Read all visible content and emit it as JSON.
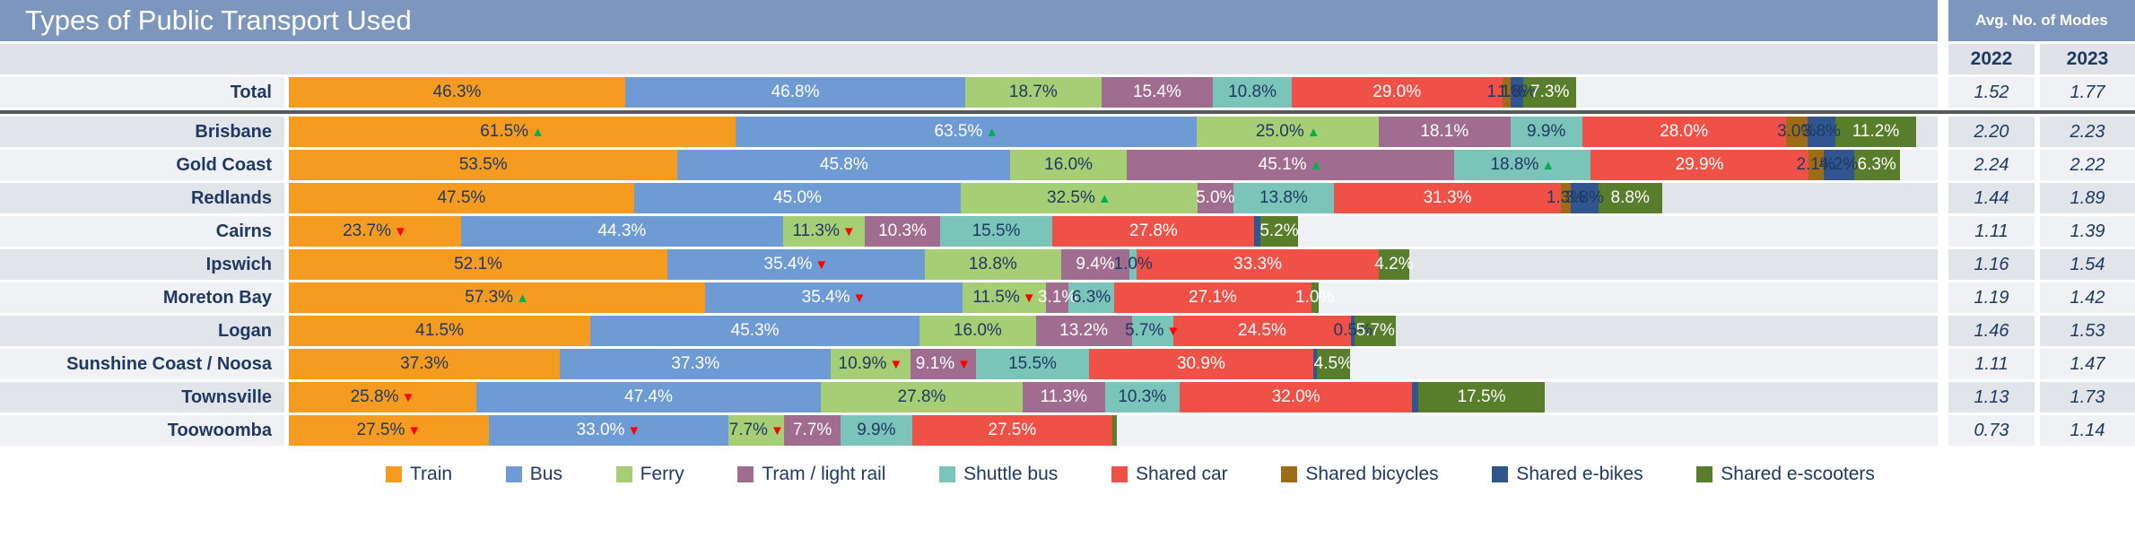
{
  "title": "Types of Public Transport Used",
  "avg_header": "Avg. No. of Modes",
  "years": [
    "2022",
    "2023"
  ],
  "colors": {
    "header_bg": "#7C96BD",
    "stripe_light": "#EFF1F4",
    "stripe_gray": "#E1E4E8",
    "years_bg": "#DFE2E6",
    "text_navy": "#1F3864",
    "title_text": "#FFFFFF",
    "arrow_up": "#00B050",
    "arrow_down": "#FF0000",
    "separator": "#58595B"
  },
  "chart_data": {
    "type": "bar",
    "orientation": "horizontal",
    "stacked": true,
    "unit": "percent",
    "title": "Types of Public Transport Used",
    "legend_position": "bottom",
    "series": [
      {
        "name": "Train",
        "color": "#F59B20",
        "label_color": "#1F3864"
      },
      {
        "name": "Bus",
        "color": "#6F9BD4",
        "label_color": "#FFFFFF"
      },
      {
        "name": "Ferry",
        "color": "#A6CE74",
        "label_color": "#1F3864"
      },
      {
        "name": "Tram / light rail",
        "color": "#A06C90",
        "label_color": "#FFFFFF"
      },
      {
        "name": "Shuttle bus",
        "color": "#7BC4B9",
        "label_color": "#1F3864"
      },
      {
        "name": "Shared car",
        "color": "#EF5147",
        "label_color": "#FFFFFF"
      },
      {
        "name": "Shared bicycles",
        "color": "#9E6C16",
        "label_color": "#1F3864"
      },
      {
        "name": "Shared e-bikes",
        "color": "#31568F",
        "label_color": "#1F3864"
      },
      {
        "name": "Shared e-scooters",
        "color": "#587E2C",
        "label_color": "#FFFFFF"
      }
    ],
    "categories": [
      "Total",
      "Brisbane",
      "Gold Coast",
      "Redlands",
      "Cairns",
      "Ipswich",
      "Moreton Bay",
      "Logan",
      "Sunshine Coast / Noosa",
      "Townsville",
      "Toowoomba"
    ],
    "rows": [
      {
        "label": "Total",
        "stripe": "light",
        "avg_2022": "1.52",
        "avg_2023": "1.77",
        "segments": [
          {
            "name": "Train",
            "value": 46.3,
            "text": "46.3%",
            "arrow": null
          },
          {
            "name": "Bus",
            "value": 46.8,
            "text": "46.8%",
            "arrow": null
          },
          {
            "name": "Ferry",
            "value": 18.7,
            "text": "18.7%",
            "arrow": null
          },
          {
            "name": "Tram / light rail",
            "value": 15.4,
            "text": "15.4%",
            "arrow": null
          },
          {
            "name": "Shuttle bus",
            "value": 10.8,
            "text": "10.8%",
            "arrow": null
          },
          {
            "name": "Shared car",
            "value": 29.0,
            "text": "29.0%",
            "arrow": null
          },
          {
            "name": "Shared bicycles",
            "value": 1.1,
            "text": "1.1%",
            "arrow": null
          },
          {
            "name": "Shared e-bikes",
            "value": 1.8,
            "text": "1.8%",
            "arrow": null
          },
          {
            "name": "Shared e-scooters",
            "value": 7.3,
            "text": "7.3%",
            "arrow": null
          }
        ]
      },
      {
        "label": "Brisbane",
        "stripe": "gray",
        "avg_2022": "2.20",
        "avg_2023": "2.23",
        "segments": [
          {
            "name": "Train",
            "value": 61.5,
            "text": "61.5%",
            "arrow": "up"
          },
          {
            "name": "Bus",
            "value": 63.5,
            "text": "63.5%",
            "arrow": "up"
          },
          {
            "name": "Ferry",
            "value": 25.0,
            "text": "25.0%",
            "arrow": "up"
          },
          {
            "name": "Tram / light rail",
            "value": 18.1,
            "text": "18.1%",
            "arrow": null
          },
          {
            "name": "Shuttle bus",
            "value": 9.9,
            "text": "9.9%",
            "arrow": null
          },
          {
            "name": "Shared car",
            "value": 28.0,
            "text": "28.0%",
            "arrow": null
          },
          {
            "name": "Shared bicycles",
            "value": 3.0,
            "text": "3.0%",
            "arrow": null
          },
          {
            "name": "Shared e-bikes",
            "value": 3.8,
            "text": "3.8%",
            "arrow": null
          },
          {
            "name": "Shared e-scooters",
            "value": 11.2,
            "text": "11.2%",
            "arrow": null
          }
        ]
      },
      {
        "label": "Gold Coast",
        "stripe": "light",
        "avg_2022": "2.24",
        "avg_2023": "2.22",
        "segments": [
          {
            "name": "Train",
            "value": 53.5,
            "text": "53.5%",
            "arrow": null
          },
          {
            "name": "Bus",
            "value": 45.8,
            "text": "45.8%",
            "arrow": null
          },
          {
            "name": "Ferry",
            "value": 16.0,
            "text": "16.0%",
            "arrow": null
          },
          {
            "name": "Tram / light rail",
            "value": 45.1,
            "text": "45.1%",
            "arrow": "up"
          },
          {
            "name": "Shuttle bus",
            "value": 18.8,
            "text": "18.8%",
            "arrow": "up"
          },
          {
            "name": "Shared car",
            "value": 29.9,
            "text": "29.9%",
            "arrow": null
          },
          {
            "name": "Shared bicycles",
            "value": 2.1,
            "text": "2.1%",
            "arrow": null
          },
          {
            "name": "Shared e-bikes",
            "value": 4.2,
            "text": "4.2%",
            "arrow": null
          },
          {
            "name": "Shared e-scooters",
            "value": 6.3,
            "text": "6.3%",
            "arrow": null
          }
        ]
      },
      {
        "label": "Redlands",
        "stripe": "gray",
        "avg_2022": "1.44",
        "avg_2023": "1.89",
        "segments": [
          {
            "name": "Train",
            "value": 47.5,
            "text": "47.5%",
            "arrow": null
          },
          {
            "name": "Bus",
            "value": 45.0,
            "text": "45.0%",
            "arrow": null
          },
          {
            "name": "Ferry",
            "value": 32.5,
            "text": "32.5%",
            "arrow": "up"
          },
          {
            "name": "Tram / light rail",
            "value": 5.0,
            "text": "5.0%",
            "arrow": null
          },
          {
            "name": "Shuttle bus",
            "value": 13.8,
            "text": "13.8%",
            "arrow": null
          },
          {
            "name": "Shared car",
            "value": 31.3,
            "text": "31.3%",
            "arrow": null
          },
          {
            "name": "Shared bicycles",
            "value": 1.3,
            "text": "1.3%",
            "arrow": null
          },
          {
            "name": "Shared e-bikes",
            "value": 3.8,
            "text": "3.8%",
            "arrow": null
          },
          {
            "name": "Shared e-scooters",
            "value": 8.8,
            "text": "8.8%",
            "arrow": null
          }
        ]
      },
      {
        "label": "Cairns",
        "stripe": "light",
        "avg_2022": "1.11",
        "avg_2023": "1.39",
        "segments": [
          {
            "name": "Train",
            "value": 23.7,
            "text": "23.7%",
            "arrow": "down"
          },
          {
            "name": "Bus",
            "value": 44.3,
            "text": "44.3%",
            "arrow": null
          },
          {
            "name": "Ferry",
            "value": 11.3,
            "text": "11.3%",
            "arrow": "down"
          },
          {
            "name": "Tram / light rail",
            "value": 10.3,
            "text": "10.3%",
            "arrow": null
          },
          {
            "name": "Shuttle bus",
            "value": 15.5,
            "text": "15.5%",
            "arrow": null
          },
          {
            "name": "Shared car",
            "value": 27.8,
            "text": "27.8%",
            "arrow": null
          },
          {
            "name": "Shared e-bikes",
            "value": 0.8,
            "text": "",
            "arrow": null
          },
          {
            "name": "Shared e-scooters",
            "value": 5.2,
            "text": "5.2%",
            "arrow": null
          }
        ]
      },
      {
        "label": "Ipswich",
        "stripe": "gray",
        "avg_2022": "1.16",
        "avg_2023": "1.54",
        "segments": [
          {
            "name": "Train",
            "value": 52.1,
            "text": "52.1%",
            "arrow": null
          },
          {
            "name": "Bus",
            "value": 35.4,
            "text": "35.4%",
            "arrow": "down"
          },
          {
            "name": "Ferry",
            "value": 18.8,
            "text": "18.8%",
            "arrow": null
          },
          {
            "name": "Tram / light rail",
            "value": 9.4,
            "text": "9.4%",
            "arrow": null
          },
          {
            "name": "Shuttle bus",
            "value": 1.0,
            "text": "1.0%",
            "arrow": null
          },
          {
            "name": "Shared car",
            "value": 33.3,
            "text": "33.3%",
            "arrow": null
          },
          {
            "name": "Shared e-scooters",
            "value": 4.2,
            "text": "4.2%",
            "arrow": null
          }
        ]
      },
      {
        "label": "Moreton Bay",
        "stripe": "light",
        "avg_2022": "1.19",
        "avg_2023": "1.42",
        "segments": [
          {
            "name": "Train",
            "value": 57.3,
            "text": "57.3%",
            "arrow": "up"
          },
          {
            "name": "Bus",
            "value": 35.4,
            "text": "35.4%",
            "arrow": "down"
          },
          {
            "name": "Ferry",
            "value": 11.5,
            "text": "11.5%",
            "arrow": "down"
          },
          {
            "name": "Tram / light rail",
            "value": 3.1,
            "text": "3.1%",
            "arrow": null
          },
          {
            "name": "Shuttle bus",
            "value": 6.3,
            "text": "6.3%",
            "arrow": null
          },
          {
            "name": "Shared car",
            "value": 27.1,
            "text": "27.1%",
            "arrow": null
          },
          {
            "name": "Shared e-scooters",
            "value": 1.0,
            "text": "1.0%",
            "arrow": null
          }
        ]
      },
      {
        "label": "Logan",
        "stripe": "gray",
        "avg_2022": "1.46",
        "avg_2023": "1.53",
        "segments": [
          {
            "name": "Train",
            "value": 41.5,
            "text": "41.5%",
            "arrow": null
          },
          {
            "name": "Bus",
            "value": 45.3,
            "text": "45.3%",
            "arrow": null
          },
          {
            "name": "Ferry",
            "value": 16.0,
            "text": "16.0%",
            "arrow": null
          },
          {
            "name": "Tram / light rail",
            "value": 13.2,
            "text": "13.2%",
            "arrow": null
          },
          {
            "name": "Shuttle bus",
            "value": 5.7,
            "text": "5.7%",
            "arrow": "down"
          },
          {
            "name": "Shared car",
            "value": 24.5,
            "text": "24.5%",
            "arrow": null
          },
          {
            "name": "Shared e-bikes",
            "value": 0.5,
            "text": "0.5%",
            "arrow": null
          },
          {
            "name": "Shared e-scooters",
            "value": 5.7,
            "text": "5.7%",
            "arrow": null
          }
        ]
      },
      {
        "label": "Sunshine Coast / Noosa",
        "stripe": "light",
        "avg_2022": "1.11",
        "avg_2023": "1.47",
        "segments": [
          {
            "name": "Train",
            "value": 37.3,
            "text": "37.3%",
            "arrow": null
          },
          {
            "name": "Bus",
            "value": 37.3,
            "text": "37.3%",
            "arrow": null
          },
          {
            "name": "Ferry",
            "value": 10.9,
            "text": "10.9%",
            "arrow": "down"
          },
          {
            "name": "Tram / light rail",
            "value": 9.1,
            "text": "9.1%",
            "arrow": "down"
          },
          {
            "name": "Shuttle bus",
            "value": 15.5,
            "text": "15.5%",
            "arrow": null
          },
          {
            "name": "Shared car",
            "value": 30.9,
            "text": "30.9%",
            "arrow": null
          },
          {
            "name": "Shared e-bikes",
            "value": 0.5,
            "text": "",
            "arrow": null
          },
          {
            "name": "Shared e-scooters",
            "value": 4.5,
            "text": "4.5%",
            "arrow": null
          }
        ]
      },
      {
        "label": "Townsville",
        "stripe": "gray",
        "avg_2022": "1.13",
        "avg_2023": "1.73",
        "segments": [
          {
            "name": "Train",
            "value": 25.8,
            "text": "25.8%",
            "arrow": "down"
          },
          {
            "name": "Bus",
            "value": 47.4,
            "text": "47.4%",
            "arrow": null
          },
          {
            "name": "Ferry",
            "value": 27.8,
            "text": "27.8%",
            "arrow": null
          },
          {
            "name": "Tram / light rail",
            "value": 11.3,
            "text": "11.3%",
            "arrow": null
          },
          {
            "name": "Shuttle bus",
            "value": 10.3,
            "text": "10.3%",
            "arrow": null
          },
          {
            "name": "Shared car",
            "value": 32.0,
            "text": "32.0%",
            "arrow": null
          },
          {
            "name": "Shared e-bikes",
            "value": 0.8,
            "text": "",
            "arrow": null
          },
          {
            "name": "Shared e-scooters",
            "value": 17.5,
            "text": "17.5%",
            "arrow": null
          }
        ]
      },
      {
        "label": "Toowoomba",
        "stripe": "light",
        "avg_2022": "0.73",
        "avg_2023": "1.14",
        "segments": [
          {
            "name": "Train",
            "value": 27.5,
            "text": "27.5%",
            "arrow": "down"
          },
          {
            "name": "Bus",
            "value": 33.0,
            "text": "33.0%",
            "arrow": "down"
          },
          {
            "name": "Ferry",
            "value": 7.7,
            "text": "7.7%",
            "arrow": "down"
          },
          {
            "name": "Tram / light rail",
            "value": 7.7,
            "text": "7.7%",
            "arrow": null
          },
          {
            "name": "Shuttle bus",
            "value": 9.9,
            "text": "9.9%",
            "arrow": null
          },
          {
            "name": "Shared car",
            "value": 27.5,
            "text": "27.5%",
            "arrow": null
          },
          {
            "name": "Shared e-scooters",
            "value": 0.7,
            "text": "",
            "arrow": null
          }
        ]
      }
    ]
  }
}
